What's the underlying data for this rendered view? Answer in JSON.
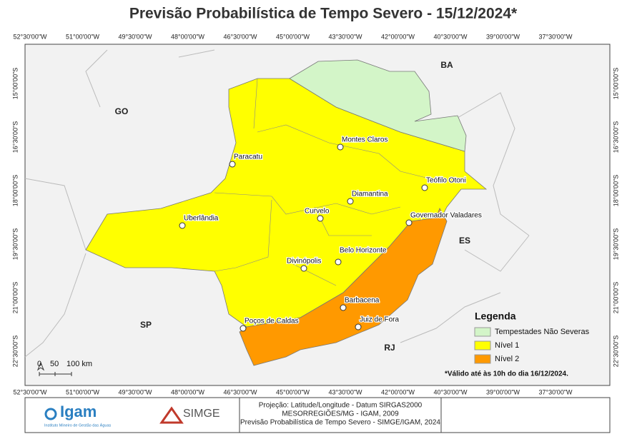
{
  "header": {
    "title": "Previsão Probabilística de Tempo Severo - 15/12/2024*"
  },
  "map": {
    "longitude_labels": [
      "52°30'00\"W",
      "51°00'00\"W",
      "49°30'00\"W",
      "48°00'00\"W",
      "46°30'00\"W",
      "45°00'00\"W",
      "43°30'00\"W",
      "42°00'00\"W",
      "40°30'00\"W",
      "39°00'00\"W",
      "37°30'00\"W"
    ],
    "latitude_labels": [
      "15°00'00\"S",
      "16°30'00\"S",
      "18°00'00\"S",
      "19°30'00\"S",
      "21°00'00\"S",
      "22°30'00\"S"
    ],
    "state_labels": [
      "BA",
      "GO",
      "ES",
      "SP",
      "RJ"
    ],
    "cities": [
      "Montes Claros",
      "Paracatu",
      "Teófilo Otoni",
      "Diamantina",
      "Curvelo",
      "Uberlândia",
      "Governador Valadares",
      "Belo Horizonte",
      "Divinópolis",
      "Barbacena",
      "Juiz de Fora",
      "Poços de Caldas"
    ],
    "scale": [
      "0",
      "50",
      "100 km"
    ],
    "note": "*Válido até às 10h do dia 16/12/2024."
  },
  "legend": {
    "title": "Legenda",
    "items": [
      {
        "label": "Tempestades Não Severas",
        "color": "#d3f5c8"
      },
      {
        "label": "Nível 1",
        "color": "#ffff00"
      },
      {
        "label": "Nível 2",
        "color": "#ff9900"
      }
    ]
  },
  "footer": {
    "igam": "Igam",
    "igam_subtitle": "Instituto Mineiro de Gestão das Águas",
    "simge": "SIMGE",
    "credits": [
      "Projeção: Latitude/Longitude - Datum SIRGAS2000",
      "MESORREGIÕES/MG - IGAM, 2009",
      "Previsão Probabilística de Tempo Severo - SIMGE/IGAM, 2024"
    ]
  }
}
